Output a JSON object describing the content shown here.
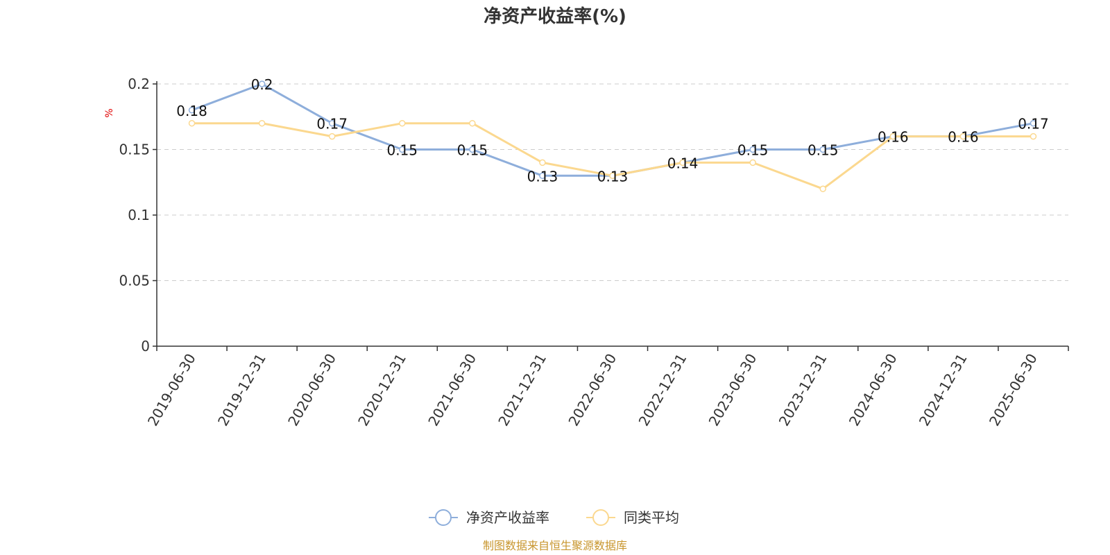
{
  "chart_data": {
    "type": "line",
    "title": "净资产收益率(%)",
    "ylabel": "%",
    "ylim": [
      0,
      0.2
    ],
    "yticks": [
      "0",
      "0.05",
      "0.1",
      "0.15",
      "0.2"
    ],
    "grid": true,
    "legend_position": "bottom",
    "categories": [
      "2019-06-30",
      "2019-12-31",
      "2020-06-30",
      "2020-12-31",
      "2021-06-30",
      "2021-12-31",
      "2022-06-30",
      "2022-12-31",
      "2023-06-30",
      "2023-12-31",
      "2024-06-30",
      "2024-12-31",
      "2025-06-30"
    ],
    "series": [
      {
        "name": "净资产收益率",
        "color": "#8eaedb",
        "labels": true,
        "values": [
          0.18,
          0.2,
          0.17,
          0.15,
          0.15,
          0.13,
          0.13,
          0.14,
          0.15,
          0.15,
          0.16,
          0.16,
          0.17
        ]
      },
      {
        "name": "同类平均",
        "color": "#fbd88f",
        "labels": false,
        "values": [
          0.17,
          0.17,
          0.16,
          0.17,
          0.17,
          0.14,
          0.13,
          0.14,
          0.14,
          0.12,
          0.16,
          0.16,
          0.16
        ]
      }
    ]
  },
  "source_note": "制图数据来自恒生聚源数据库"
}
